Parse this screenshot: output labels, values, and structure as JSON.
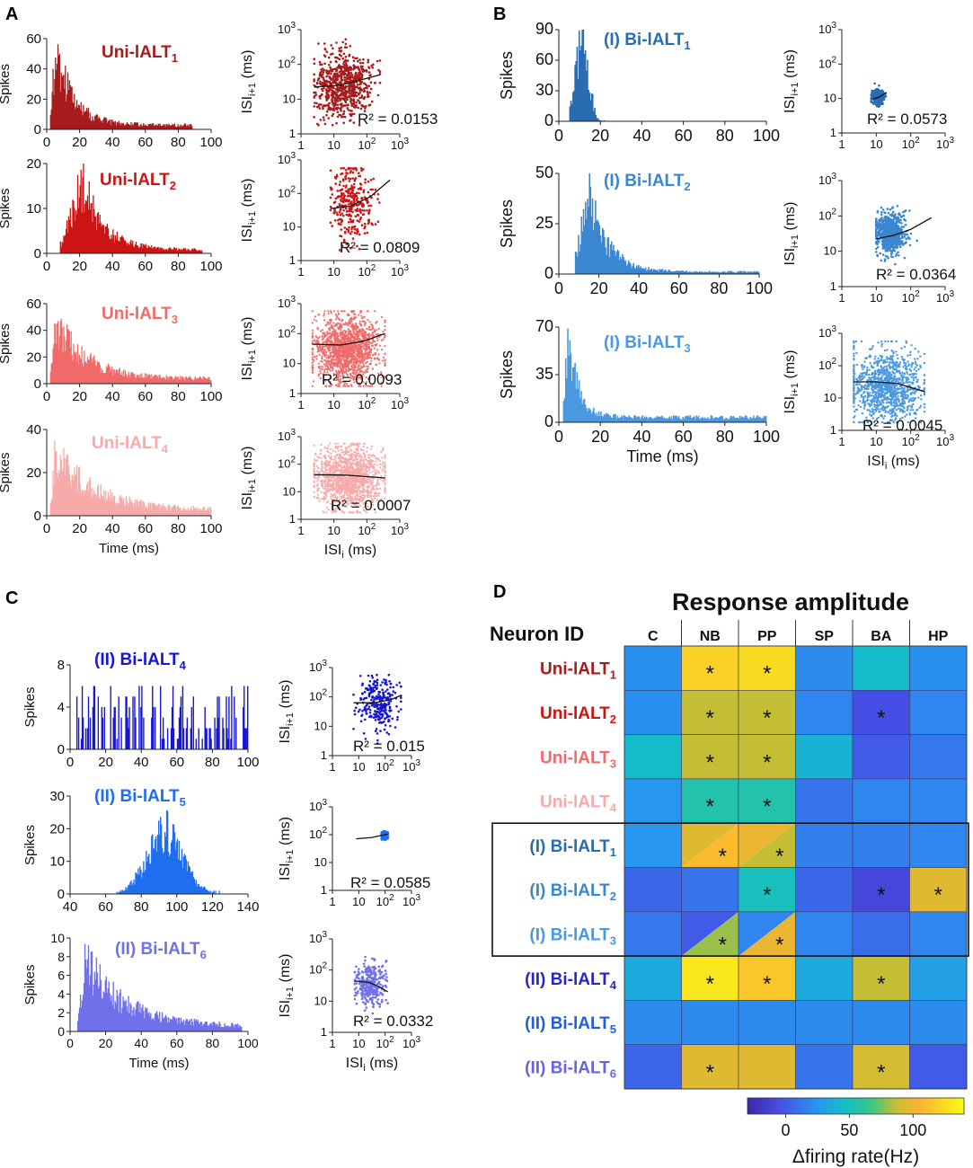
{
  "panel_letters": {
    "A": "A",
    "B": "B",
    "C": "C",
    "D": "D"
  },
  "colors": {
    "uni1": "#a61c1c",
    "uni2": "#cc1414",
    "uni3": "#f06a6a",
    "uni4": "#f6aaaa",
    "bi1": "#2a6cb0",
    "bi2": "#3a86d0",
    "bi3": "#4a98e0",
    "bi4": "#1616d4",
    "bi5": "#1f6ef0",
    "bi6": "#7070e8",
    "label_bi4": "#2626c8",
    "label_bi5": "#1f5ee0",
    "label_bi6": "#6565e0"
  },
  "chart_data": [
    {
      "id": "A1",
      "type": "bar",
      "title": "Uni-lALT",
      "title_sub": "1",
      "color_key": "uni1",
      "ylabel": "Spikes",
      "xlabel": "",
      "xlim": [
        0,
        100
      ],
      "ylim": [
        0,
        60
      ],
      "yticks": [
        0,
        20,
        40,
        60
      ],
      "xticks": [
        0,
        20,
        40,
        60,
        80,
        100
      ],
      "profile": {
        "kind": "decay",
        "onset": 2,
        "peak_x": 5,
        "peak": 55,
        "tau": 11,
        "floor": 3,
        "end": 88
      }
    },
    {
      "id": "A1s",
      "type": "scatter",
      "r2": "R² = 0.0153",
      "color_key": "uni1",
      "ylabel": "ISI(i+1) (ms)",
      "xlabel": "",
      "xlim_log": [
        0,
        3
      ],
      "ylim_log": [
        0,
        3
      ],
      "n_points": 700,
      "cloud": {
        "cx": 1.25,
        "cy": 1.4,
        "sx": 0.42,
        "sy": 0.45,
        "xmin": 0.4,
        "xmax": 2.4
      },
      "fit": [
        [
          0.4,
          1.35
        ],
        [
          1.2,
          1.4
        ],
        [
          1.8,
          1.55
        ],
        [
          2.4,
          1.7
        ]
      ]
    },
    {
      "id": "A2",
      "type": "bar",
      "title": "Uni-lALT",
      "title_sub": "2",
      "color_key": "uni2",
      "ylabel": "Spikes",
      "xlabel": "",
      "xlim": [
        0,
        100
      ],
      "ylim": [
        0,
        20
      ],
      "yticks": [
        0,
        10,
        20
      ],
      "xticks": [
        0,
        20,
        40,
        60,
        80,
        100
      ],
      "profile": {
        "kind": "hump",
        "onset": 8,
        "peak_x": 22,
        "peak": 16,
        "rise": 7,
        "tau": 13,
        "floor": 0.8,
        "end": 94
      }
    },
    {
      "id": "A2s",
      "type": "scatter",
      "r2": "R² = 0.0809",
      "color_key": "uni2",
      "ylabel": "ISI(i+1) (ms)",
      "xlabel": "",
      "xlim_log": [
        0,
        3
      ],
      "ylim_log": [
        0,
        3
      ],
      "n_points": 320,
      "cloud": {
        "cx": 1.55,
        "cy": 1.75,
        "sx": 0.35,
        "sy": 0.5,
        "xmin": 0.9,
        "xmax": 2.7
      },
      "fit": [
        [
          0.9,
          1.55
        ],
        [
          1.5,
          1.62
        ],
        [
          2.1,
          1.9
        ],
        [
          2.7,
          2.4
        ]
      ]
    },
    {
      "id": "A3",
      "type": "bar",
      "title": "Uni-lALT",
      "title_sub": "3",
      "color_key": "uni3",
      "ylabel": "Spikes",
      "xlabel": "",
      "xlim": [
        0,
        100
      ],
      "ylim": [
        0,
        60
      ],
      "yticks": [
        0,
        20,
        40,
        60
      ],
      "xticks": [
        0,
        20,
        40,
        60,
        80,
        100
      ],
      "profile": {
        "kind": "decay",
        "onset": 2,
        "peak_x": 5,
        "peak": 50,
        "tau": 18,
        "floor": 4,
        "end": 100
      }
    },
    {
      "id": "A3s",
      "type": "scatter",
      "r2": "R² = 0.0093",
      "color_key": "uni3",
      "ylabel": "ISI(i+1) (ms)",
      "xlabel": "",
      "xlim_log": [
        0,
        3
      ],
      "ylim_log": [
        0,
        3
      ],
      "n_points": 1500,
      "cloud": {
        "cx": 1.4,
        "cy": 1.5,
        "sx": 0.5,
        "sy": 0.55,
        "xmin": 0.35,
        "xmax": 2.55
      },
      "fit": [
        [
          0.35,
          1.65
        ],
        [
          1.2,
          1.62
        ],
        [
          1.9,
          1.75
        ],
        [
          2.55,
          2.0
        ]
      ]
    },
    {
      "id": "A4",
      "type": "bar",
      "title": "Uni-lALT",
      "title_sub": "4",
      "color_key": "uni4",
      "ylabel": "Spikes",
      "xlabel": "Time (ms)",
      "xlim": [
        0,
        100
      ],
      "ylim": [
        0,
        40
      ],
      "yticks": [
        0,
        20,
        40
      ],
      "xticks": [
        0,
        20,
        40,
        60,
        80,
        100
      ],
      "profile": {
        "kind": "decay",
        "onset": 2,
        "peak_x": 5,
        "peak": 33,
        "tau": 22,
        "floor": 3,
        "end": 100
      }
    },
    {
      "id": "A4s",
      "type": "scatter",
      "r2": "R² = 0.0007",
      "color_key": "uni4",
      "ylabel": "ISI(i+1) (ms)",
      "xlabel": "ISI(i) (ms)",
      "xlim_log": [
        0,
        3
      ],
      "ylim_log": [
        0,
        3
      ],
      "n_points": 1500,
      "cloud": {
        "cx": 1.45,
        "cy": 1.55,
        "sx": 0.5,
        "sy": 0.55,
        "xmin": 0.4,
        "xmax": 2.55
      },
      "fit": [
        [
          0.4,
          1.62
        ],
        [
          1.4,
          1.6
        ],
        [
          2.55,
          1.5
        ]
      ]
    },
    {
      "id": "B1",
      "type": "bar",
      "title": "(I) Bi-lALT",
      "title_sub": "1",
      "color_key": "bi1",
      "ylabel": "Spikes",
      "xlabel": "",
      "xlim": [
        0,
        100
      ],
      "ylim": [
        0,
        90
      ],
      "yticks": [
        0,
        30,
        60,
        90
      ],
      "xticks": [
        0,
        20,
        40,
        60,
        80,
        100
      ],
      "profile": {
        "kind": "gauss",
        "onset": 5,
        "peak_x": 11,
        "peak": 88,
        "sd": 3,
        "floor": 0,
        "end": 22
      }
    },
    {
      "id": "B1s",
      "type": "scatter",
      "r2": "R² = 0.0573",
      "color_key": "bi1",
      "ylabel": "ISI(i+1) (ms)",
      "xlabel": "",
      "xlim_log": [
        0,
        3
      ],
      "ylim_log": [
        0,
        3
      ],
      "n_points": 350,
      "cloud": {
        "cx": 1.05,
        "cy": 1.05,
        "sx": 0.08,
        "sy": 0.1,
        "xmin": 0.85,
        "xmax": 1.3
      },
      "fit": [
        [
          0.9,
          0.98
        ],
        [
          1.1,
          1.05
        ],
        [
          1.3,
          1.18
        ]
      ]
    },
    {
      "id": "B2",
      "type": "bar",
      "title": "(I) Bi-lALT",
      "title_sub": "2",
      "color_key": "bi2",
      "ylabel": "Spikes",
      "xlabel": "",
      "xlim": [
        0,
        100
      ],
      "ylim": [
        0,
        50
      ],
      "yticks": [
        0,
        25,
        50
      ],
      "xticks": [
        0,
        20,
        40,
        60,
        80,
        100
      ],
      "profile": {
        "kind": "hump",
        "onset": 8,
        "peak_x": 15,
        "peak": 42,
        "rise": 4,
        "tau": 9,
        "floor": 1.2,
        "end": 100
      }
    },
    {
      "id": "B2s",
      "type": "scatter",
      "r2": "R² = 0.0364",
      "color_key": "bi2",
      "ylabel": "ISI(i+1) (ms)",
      "xlabel": "",
      "xlim_log": [
        0,
        3
      ],
      "ylim_log": [
        0,
        3
      ],
      "n_points": 700,
      "cloud": {
        "cx": 1.4,
        "cy": 1.5,
        "sx": 0.22,
        "sy": 0.28,
        "xmin": 1.0,
        "xmax": 2.2
      },
      "fit": [
        [
          1.0,
          1.35
        ],
        [
          1.5,
          1.45
        ],
        [
          2.0,
          1.62
        ],
        [
          2.6,
          1.95
        ]
      ]
    },
    {
      "id": "B3",
      "type": "bar",
      "title": "(I) Bi-lALT",
      "title_sub": "3",
      "color_key": "bi3",
      "ylabel": "Spikes",
      "xlabel": "Time (ms)",
      "xlim": [
        0,
        100
      ],
      "ylim": [
        0,
        70
      ],
      "yticks": [
        0,
        35,
        70
      ],
      "xticks": [
        0,
        20,
        40,
        60,
        80,
        100
      ],
      "profile": {
        "kind": "decay",
        "onset": 2,
        "peak_x": 4,
        "peak": 64,
        "tau": 5,
        "floor": 4,
        "end": 100
      }
    },
    {
      "id": "B3s",
      "type": "scatter",
      "r2": "R² = 0.0045",
      "color_key": "bi3",
      "ylabel": "ISI(i+1) (ms)",
      "xlabel": "ISI(i) (ms)",
      "xlim_log": [
        0,
        3
      ],
      "ylim_log": [
        0,
        3
      ],
      "n_points": 1100,
      "cloud": {
        "cx": 1.25,
        "cy": 1.35,
        "sx": 0.55,
        "sy": 0.55,
        "xmin": 0.35,
        "xmax": 2.4
      },
      "fit": [
        [
          0.35,
          1.5
        ],
        [
          1.0,
          1.5
        ],
        [
          1.6,
          1.45
        ],
        [
          2.4,
          1.2
        ]
      ]
    },
    {
      "id": "C1",
      "type": "bar",
      "title": "(II) Bi-lALT",
      "title_sub": "4",
      "color_key": "bi4",
      "ylabel": "Spikes",
      "xlabel": "",
      "xlim": [
        0,
        100
      ],
      "ylim": [
        0,
        8
      ],
      "yticks": [
        0,
        4,
        8
      ],
      "xticks": [
        0,
        20,
        40,
        60,
        80,
        100
      ],
      "profile": {
        "kind": "sparse",
        "onset": 2,
        "peak": 6,
        "end": 100
      }
    },
    {
      "id": "C1s",
      "type": "scatter",
      "r2": "R² = 0.015",
      "color_key": "bi4",
      "ylabel": "ISI(i+1) (ms)",
      "xlabel": "",
      "xlim_log": [
        0,
        3
      ],
      "ylim_log": [
        0,
        3
      ],
      "n_points": 280,
      "cloud": {
        "cx": 1.75,
        "cy": 1.8,
        "sx": 0.4,
        "sy": 0.45,
        "xmin": 0.8,
        "xmax": 2.6
      },
      "fit": [
        [
          0.8,
          1.8
        ],
        [
          1.6,
          1.8
        ],
        [
          2.2,
          1.9
        ],
        [
          2.6,
          2.05
        ]
      ]
    },
    {
      "id": "C2",
      "type": "bar",
      "title": "(II) Bi-lALT",
      "title_sub": "5",
      "color_key": "bi5",
      "ylabel": "Spikes",
      "xlabel": "",
      "xlim": [
        40,
        140
      ],
      "ylim": [
        0,
        30
      ],
      "yticks": [
        0,
        10,
        20,
        30
      ],
      "xticks": [
        40,
        60,
        80,
        100,
        120,
        140
      ],
      "profile": {
        "kind": "gauss",
        "onset": 66,
        "peak_x": 93,
        "peak": 20,
        "sd": 10,
        "floor": 0,
        "end": 125
      }
    },
    {
      "id": "C2s",
      "type": "scatter",
      "r2": "R² = 0.0585",
      "color_key": "bi5",
      "ylabel": "ISI(i+1) (ms)",
      "xlabel": "",
      "xlim_log": [
        0,
        3
      ],
      "ylim_log": [
        0,
        3
      ],
      "n_points": 200,
      "cloud": {
        "cx": 1.97,
        "cy": 1.97,
        "sx": 0.05,
        "sy": 0.06,
        "xmin": 1.85,
        "xmax": 2.1
      },
      "fit": [
        [
          0.9,
          1.85
        ],
        [
          1.5,
          1.9
        ],
        [
          2.1,
          2.02
        ]
      ]
    },
    {
      "id": "C3",
      "type": "bar",
      "title": "(II) Bi-lALT",
      "title_sub": "6",
      "color_key": "bi6",
      "ylabel": "Spikes",
      "xlabel": "Time (ms)",
      "xlim": [
        0,
        100
      ],
      "ylim": [
        0,
        10
      ],
      "yticks": [
        0,
        2,
        4,
        6,
        8,
        10
      ],
      "xticks": [
        0,
        20,
        40,
        60,
        80,
        100
      ],
      "profile": {
        "kind": "decay",
        "onset": 4,
        "peak_x": 8,
        "peak": 8,
        "tau": 22,
        "floor": 0.6,
        "end": 96
      }
    },
    {
      "id": "C3s",
      "type": "scatter",
      "r2": "R² = 0.0332",
      "color_key": "bi6",
      "ylabel": "ISI(i+1) (ms)",
      "xlabel": "ISI(i) (ms)",
      "xlim_log": [
        0,
        3
      ],
      "ylim_log": [
        0,
        3
      ],
      "n_points": 320,
      "cloud": {
        "cx": 1.45,
        "cy": 1.55,
        "sx": 0.28,
        "sy": 0.35,
        "xmin": 0.85,
        "xmax": 2.1
      },
      "fit": [
        [
          0.85,
          1.65
        ],
        [
          1.4,
          1.6
        ],
        [
          1.8,
          1.45
        ],
        [
          2.1,
          1.3
        ]
      ]
    },
    {
      "id": "D",
      "type": "heatmap",
      "title": "Response amplitude",
      "row_header": "Neuron ID",
      "columns": [
        "C",
        "NB",
        "PP",
        "SP",
        "BA",
        "HP"
      ],
      "rows": [
        {
          "label": "Uni-lALT",
          "sub": "1",
          "color_key": "uni1"
        },
        {
          "label": "Uni-lALT",
          "sub": "2",
          "color_key": "uni2"
        },
        {
          "label": "Uni-lALT",
          "sub": "3",
          "color_key": "uni3"
        },
        {
          "label": "Uni-lALT",
          "sub": "4",
          "color_key": "uni4"
        },
        {
          "label": "(I) Bi-lALT",
          "sub": "1",
          "color_key": "bi1"
        },
        {
          "label": "(I) Bi-lALT",
          "sub": "2",
          "color_key": "bi2"
        },
        {
          "label": "(I) Bi-lALT",
          "sub": "3",
          "color_key": "bi3"
        },
        {
          "label": "(II) Bi-lALT",
          "sub": "4",
          "color_key": "label_bi4"
        },
        {
          "label": "(II) Bi-lALT",
          "sub": "5",
          "color_key": "label_bi5"
        },
        {
          "label": "(II) Bi-lALT",
          "sub": "6",
          "color_key": "label_bi6"
        }
      ],
      "values": [
        [
          22,
          120,
          125,
          20,
          45,
          22
        ],
        [
          22,
          85,
          85,
          18,
          -5,
          18
        ],
        [
          45,
          85,
          85,
          40,
          0,
          12
        ],
        [
          25,
          55,
          55,
          10,
          18,
          18
        ],
        [
          25,
          100,
          90,
          15,
          15,
          18
        ],
        [
          5,
          10,
          50,
          5,
          -10,
          95
        ],
        [
          12,
          10,
          20,
          18,
          8,
          18
        ],
        [
          35,
          130,
          115,
          35,
          85,
          30
        ],
        [
          20,
          20,
          20,
          20,
          20,
          20
        ],
        [
          5,
          95,
          95,
          10,
          90,
          0
        ]
      ],
      "split": {
        "4,1": [
          95,
          110
        ],
        "4,2": [
          100,
          85
        ],
        "6,1": [
          0,
          80
        ],
        "6,2": [
          18,
          100
        ]
      },
      "stars": [
        [
          0,
          1
        ],
        [
          0,
          2
        ],
        [
          1,
          1
        ],
        [
          1,
          2
        ],
        [
          1,
          4
        ],
        [
          2,
          1
        ],
        [
          2,
          2
        ],
        [
          3,
          1
        ],
        [
          3,
          2
        ],
        [
          4,
          1
        ],
        [
          4,
          2
        ],
        [
          5,
          2
        ],
        [
          5,
          4
        ],
        [
          5,
          5
        ],
        [
          6,
          1
        ],
        [
          6,
          2
        ],
        [
          7,
          1
        ],
        [
          7,
          2
        ],
        [
          7,
          4
        ],
        [
          9,
          1
        ],
        [
          9,
          4
        ]
      ],
      "star_symbol": "*",
      "colorbar": {
        "min": -30,
        "max": 140,
        "ticks": [
          0,
          50,
          100
        ],
        "label": "Δfiring rate(Hz)"
      }
    }
  ]
}
